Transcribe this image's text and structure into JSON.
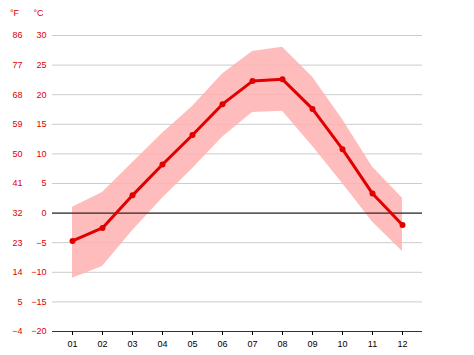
{
  "chart_data": {
    "type": "line",
    "categories": [
      "01",
      "02",
      "03",
      "04",
      "05",
      "06",
      "07",
      "08",
      "09",
      "10",
      "11",
      "12"
    ],
    "series": [
      {
        "type": "area",
        "color": "#ffb0b0",
        "low": [
          -11,
          -9,
          -3,
          2.5,
          7.5,
          12.8,
          17,
          17.2,
          11.3,
          5,
          -1.5,
          -6.5
        ],
        "high": [
          1,
          3.5,
          8.5,
          13.5,
          18,
          23.5,
          27.3,
          28,
          23,
          15.8,
          7.8,
          2.5
        ]
      },
      {
        "type": "line",
        "color": "#e00000",
        "marker": "circle",
        "values": [
          -4.7,
          -2.5,
          3,
          8.2,
          13.2,
          18.4,
          22.3,
          22.6,
          17.6,
          10.8,
          3.3,
          -2
        ]
      }
    ],
    "ylabel": "°C",
    "ylim": [
      -20,
      30
    ],
    "yticks": [
      -20,
      -15,
      -10,
      -5,
      0,
      5,
      10,
      15,
      20,
      25,
      30
    ],
    "y2label": "°F",
    "y2lim": [
      -4,
      86
    ],
    "y2ticks": [
      -4,
      5,
      14,
      23,
      32,
      41,
      50,
      59,
      68,
      77,
      86
    ],
    "grid": true
  }
}
